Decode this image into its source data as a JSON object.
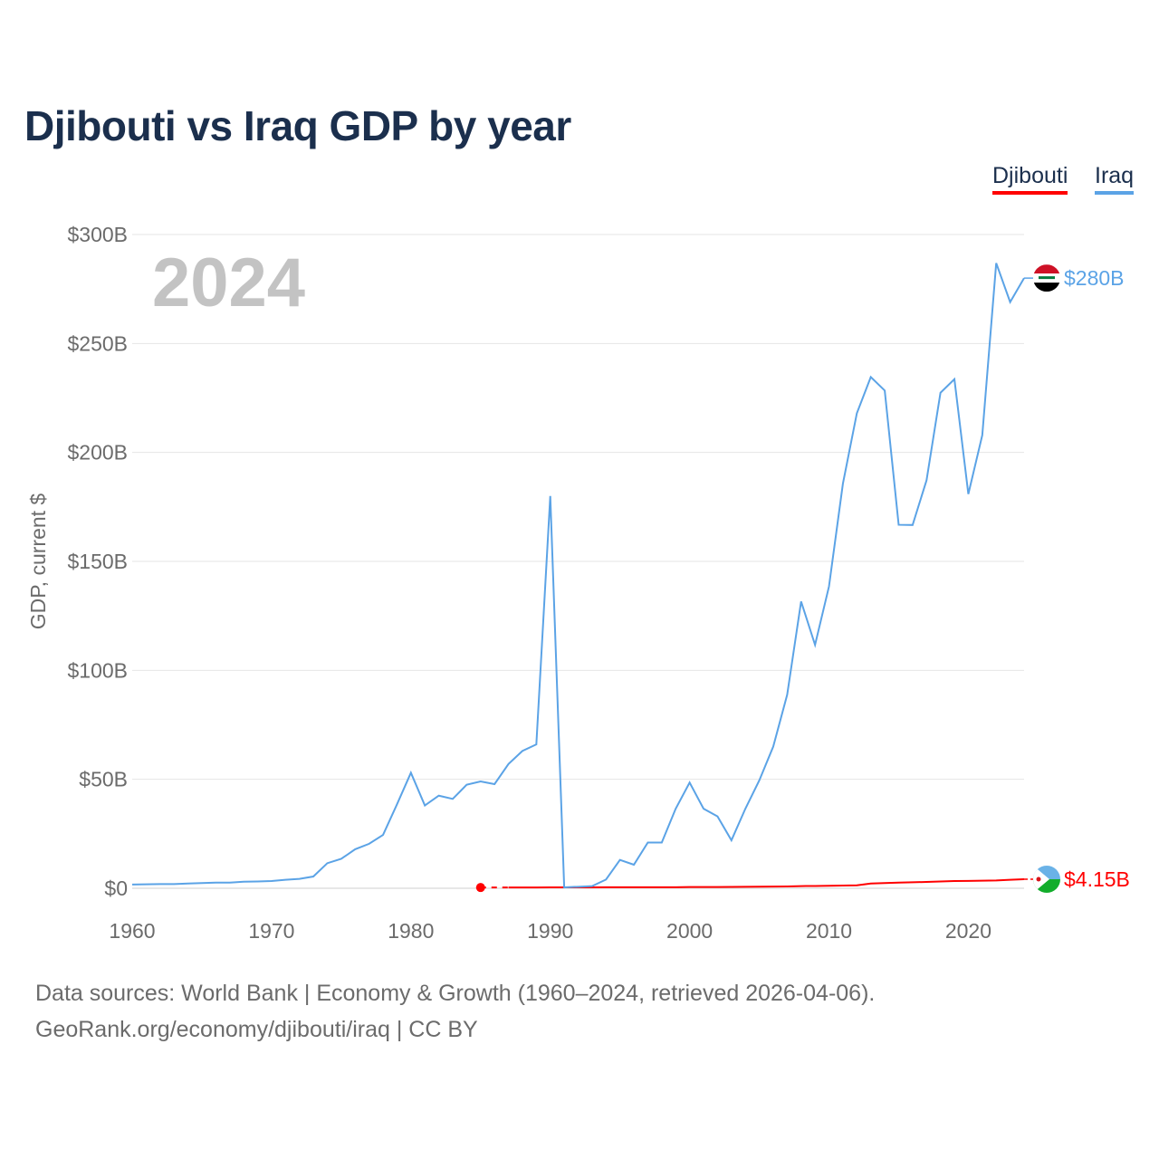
{
  "chart_data": {
    "type": "line",
    "title": "Djibouti vs Iraq GDP by year",
    "ylabel": "GDP, current $",
    "xlabel": "",
    "xlim": [
      1960,
      2024
    ],
    "ylim": [
      0,
      300
    ],
    "y_unit": "billions USD",
    "x_ticks": [
      1960,
      1970,
      1980,
      1990,
      2000,
      2010,
      2020
    ],
    "x_tick_labels": [
      "1960",
      "1970",
      "1980",
      "1990",
      "2000",
      "2010",
      "2020"
    ],
    "y_ticks": [
      0,
      50,
      100,
      150,
      200,
      250,
      300
    ],
    "y_tick_labels": [
      "$0",
      "$50B",
      "$100B",
      "$150B",
      "$200B",
      "$250B",
      "$300B"
    ],
    "grid": true,
    "legend_position": "top-right",
    "year_watermark": "2024",
    "series": [
      {
        "name": "Djibouti",
        "color": "#ff0000",
        "end_label": "$4.15B",
        "dashed_segment": [
          1985,
          1987
        ],
        "points": [
          [
            1985,
            0.34
          ],
          [
            1986,
            0.35
          ],
          [
            1987,
            0.36
          ],
          [
            1988,
            0.37
          ],
          [
            1989,
            0.38
          ],
          [
            1990,
            0.41
          ],
          [
            1991,
            0.42
          ],
          [
            1992,
            0.44
          ],
          [
            1993,
            0.44
          ],
          [
            1994,
            0.45
          ],
          [
            1995,
            0.45
          ],
          [
            1996,
            0.45
          ],
          [
            1997,
            0.45
          ],
          [
            1998,
            0.46
          ],
          [
            1999,
            0.48
          ],
          [
            2000,
            0.55
          ],
          [
            2001,
            0.57
          ],
          [
            2002,
            0.59
          ],
          [
            2003,
            0.63
          ],
          [
            2004,
            0.67
          ],
          [
            2005,
            0.71
          ],
          [
            2006,
            0.77
          ],
          [
            2007,
            0.85
          ],
          [
            2008,
            1.0
          ],
          [
            2009,
            1.05
          ],
          [
            2010,
            1.13
          ],
          [
            2011,
            1.24
          ],
          [
            2012,
            1.35
          ],
          [
            2013,
            2.2
          ],
          [
            2014,
            2.4
          ],
          [
            2015,
            2.6
          ],
          [
            2016,
            2.75
          ],
          [
            2017,
            2.9
          ],
          [
            2018,
            3.1
          ],
          [
            2019,
            3.3
          ],
          [
            2020,
            3.4
          ],
          [
            2021,
            3.5
          ],
          [
            2022,
            3.6
          ],
          [
            2023,
            3.9
          ],
          [
            2024,
            4.15
          ]
        ]
      },
      {
        "name": "Iraq",
        "color": "#5ba3e6",
        "end_label": "$280B",
        "points": [
          [
            1960,
            1.7
          ],
          [
            1961,
            1.8
          ],
          [
            1962,
            1.9
          ],
          [
            1963,
            1.9
          ],
          [
            1964,
            2.2
          ],
          [
            1965,
            2.4
          ],
          [
            1966,
            2.6
          ],
          [
            1967,
            2.6
          ],
          [
            1968,
            3.0
          ],
          [
            1969,
            3.1
          ],
          [
            1970,
            3.3
          ],
          [
            1971,
            3.9
          ],
          [
            1972,
            4.3
          ],
          [
            1973,
            5.4
          ],
          [
            1974,
            11.5
          ],
          [
            1975,
            13.5
          ],
          [
            1976,
            17.9
          ],
          [
            1977,
            20.4
          ],
          [
            1978,
            24.5
          ],
          [
            1979,
            38.5
          ],
          [
            1980,
            53.0
          ],
          [
            1981,
            38.0
          ],
          [
            1982,
            42.5
          ],
          [
            1983,
            41.0
          ],
          [
            1984,
            47.5
          ],
          [
            1985,
            49.0
          ],
          [
            1986,
            47.8
          ],
          [
            1987,
            57.0
          ],
          [
            1988,
            63.0
          ],
          [
            1989,
            66.0
          ],
          [
            1990,
            180.0
          ],
          [
            1991,
            0.4
          ],
          [
            1992,
            0.7
          ],
          [
            1993,
            1.0
          ],
          [
            1994,
            4.0
          ],
          [
            1995,
            13.0
          ],
          [
            1996,
            10.8
          ],
          [
            1997,
            21.0
          ],
          [
            1998,
            21.0
          ],
          [
            1999,
            36.5
          ],
          [
            2000,
            48.5
          ],
          [
            2001,
            36.5
          ],
          [
            2002,
            33.0
          ],
          [
            2003,
            22.0
          ],
          [
            2004,
            36.5
          ],
          [
            2005,
            49.5
          ],
          [
            2006,
            65.0
          ],
          [
            2007,
            88.8
          ],
          [
            2008,
            131.6
          ],
          [
            2009,
            111.7
          ],
          [
            2010,
            138.5
          ],
          [
            2011,
            185.7
          ],
          [
            2012,
            218.0
          ],
          [
            2013,
            234.6
          ],
          [
            2014,
            228.4
          ],
          [
            2015,
            166.8
          ],
          [
            2016,
            166.7
          ],
          [
            2017,
            187.2
          ],
          [
            2018,
            227.4
          ],
          [
            2019,
            233.6
          ],
          [
            2020,
            180.9
          ],
          [
            2021,
            207.9
          ],
          [
            2022,
            286.9
          ],
          [
            2023,
            269.0
          ],
          [
            2024,
            280.0
          ]
        ]
      }
    ]
  },
  "legend": {
    "djibouti": "Djibouti",
    "iraq": "Iraq"
  },
  "flags": {
    "iraq": {
      "name": "iraq-flag-icon",
      "colors": [
        "#ce1126",
        "#ffffff",
        "#000000"
      ],
      "emblem_color": "#007a3d"
    },
    "djibouti": {
      "name": "djibouti-flag-icon",
      "colors": [
        "#6ab2e7",
        "#12ad2b",
        "#ffffff",
        "#d7141a"
      ]
    }
  },
  "footer": {
    "line1": "Data sources: World Bank | Economy & Growth (1960–2024, retrieved 2026-04-06).",
    "line2": "GeoRank.org/economy/djibouti/iraq | CC BY"
  }
}
